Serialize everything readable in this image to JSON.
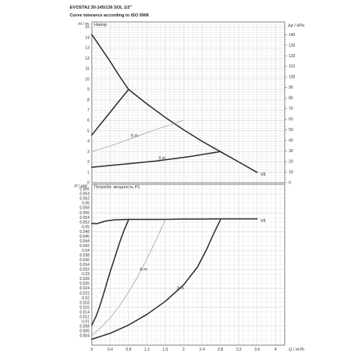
{
  "header": {
    "title": "EVOSTA2 30-145/136 SOL 1/2\"",
    "subtitle": "Curve tolerance according to ISO 9906"
  },
  "colors": {
    "curve": "#2b2b2b",
    "curve_light": "#9a9a9a",
    "grid_minor": "#e2e2e2",
    "grid_major": "#bfbfbf"
  },
  "chart_data": [
    {
      "type": "line",
      "legend_label": "Напор",
      "ylabel": "H / m",
      "ylim": [
        0,
        15.5
      ],
      "yticks": [
        0,
        1,
        2,
        3,
        4,
        5,
        6,
        7,
        8,
        9,
        10,
        11,
        12,
        13,
        14,
        15
      ],
      "y2label": "Δp / kPa",
      "y2lim": [
        0,
        152
      ],
      "y2ticks": [
        0,
        10,
        20,
        30,
        40,
        50,
        60,
        70,
        80,
        90,
        100,
        110,
        120,
        130,
        140
      ],
      "xlim": [
        0,
        4.2
      ],
      "series": [
        {
          "name": "V8",
          "style": "dark",
          "label_at": 3.65,
          "points": [
            [
              0,
              14.3
            ],
            [
              0.2,
              13.0
            ],
            [
              0.4,
              11.7
            ],
            [
              0.6,
              10.3
            ],
            [
              0.8,
              9.0
            ],
            [
              1.2,
              7.6
            ],
            [
              1.6,
              6.3
            ],
            [
              2.0,
              5.1
            ],
            [
              2.4,
              4.0
            ],
            [
              2.8,
              3.0
            ],
            [
              3.2,
              2.0
            ],
            [
              3.6,
              1.0
            ]
          ]
        },
        {
          "name": "6 m",
          "style": "light",
          "label_at": 0.85,
          "points": [
            [
              0,
              3.0
            ],
            [
              0.5,
              3.7
            ],
            [
              1.0,
              4.5
            ],
            [
              1.5,
              5.3
            ],
            [
              2.0,
              6.0
            ]
          ]
        },
        {
          "name": "3 m",
          "style": "dark",
          "label_at": 1.45,
          "points": [
            [
              0,
              1.5
            ],
            [
              0.7,
              1.8
            ],
            [
              1.4,
              2.1
            ],
            [
              2.1,
              2.5
            ],
            [
              2.8,
              3.0
            ]
          ]
        },
        {
          "name": "",
          "style": "dark",
          "points": [
            [
              0,
              4.6
            ],
            [
              0.2,
              5.7
            ],
            [
              0.4,
              6.8
            ],
            [
              0.6,
              7.9
            ],
            [
              0.8,
              9.0
            ]
          ]
        }
      ]
    },
    {
      "type": "line",
      "legend_label": "Потребл. мощность P1",
      "ylabel": "P / kW",
      "ylim": [
        0,
        0.068
      ],
      "yticks": [
        0.004,
        0.006,
        0.008,
        0.01,
        0.012,
        0.014,
        0.016,
        0.018,
        0.02,
        0.022,
        0.024,
        0.026,
        0.028,
        0.03,
        0.032,
        0.034,
        0.036,
        0.038,
        0.04,
        0.042,
        0.044,
        0.046,
        0.048,
        0.05,
        0.052,
        0.054,
        0.056,
        0.058,
        0.06,
        0.062,
        0.064,
        0.066
      ],
      "ytick_labels": [
        "0.004",
        "0.006",
        "0.008",
        "0.01",
        "0.012",
        "0.014",
        "0.016",
        "0.018",
        "0.02",
        "0.022",
        "0.024",
        "0.026",
        "0.028",
        "0.03",
        "0.032",
        "0.034",
        "0.036",
        "0.038",
        "0.04",
        "0.042",
        "0.044",
        "0.046",
        "0.048",
        "0.05",
        "0.052",
        "0.054",
        "0.056",
        "0.058",
        "0.06",
        "0.062",
        "0.064",
        "0.066"
      ],
      "xlabel": "Q / m³/h",
      "xlim": [
        0,
        4.2
      ],
      "xticks": [
        0,
        0.4,
        0.8,
        1.2,
        1.6,
        2.0,
        2.4,
        2.8,
        3.2,
        3.6,
        4.0
      ],
      "xtick_labels": [
        "0",
        "0.4",
        "0.8",
        "1.2",
        "1.6",
        "2",
        "2.4",
        "2.8",
        "3.2",
        "3.6",
        "4"
      ],
      "series": [
        {
          "name": "V8",
          "style": "dark",
          "label_at": 3.65,
          "points": [
            [
              0,
              0.0515
            ],
            [
              0.1,
              0.0513
            ],
            [
              0.3,
              0.0525
            ],
            [
              0.5,
              0.053
            ],
            [
              0.8,
              0.0532
            ],
            [
              1.2,
              0.0532
            ],
            [
              1.6,
              0.0532
            ],
            [
              2.0,
              0.0533
            ],
            [
              2.4,
              0.0533
            ],
            [
              2.8,
              0.0534
            ],
            [
              3.2,
              0.0534
            ],
            [
              3.6,
              0.0534
            ]
          ]
        },
        {
          "name": "",
          "style": "dark",
          "points": [
            [
              0,
              0.0085
            ],
            [
              0.1,
              0.0125
            ],
            [
              0.2,
              0.018
            ],
            [
              0.3,
              0.0245
            ],
            [
              0.4,
              0.031
            ],
            [
              0.5,
              0.037
            ],
            [
              0.6,
              0.043
            ],
            [
              0.7,
              0.0485
            ],
            [
              0.8,
              0.053
            ]
          ]
        },
        {
          "name": "6 m",
          "style": "light",
          "label_at": 1.05,
          "points": [
            [
              0,
              0.004
            ],
            [
              0.2,
              0.0075
            ],
            [
              0.4,
              0.0115
            ],
            [
              0.6,
              0.0165
            ],
            [
              0.8,
              0.0225
            ],
            [
              1.0,
              0.029
            ],
            [
              1.2,
              0.0365
            ],
            [
              1.4,
              0.0445
            ],
            [
              1.6,
              0.053
            ]
          ]
        },
        {
          "name": "3 m",
          "style": "dark",
          "label_at": 1.85,
          "points": [
            [
              0,
              0.0025
            ],
            [
              0.4,
              0.005
            ],
            [
              0.8,
              0.0085
            ],
            [
              1.2,
              0.013
            ],
            [
              1.6,
              0.0185
            ],
            [
              2.0,
              0.0255
            ],
            [
              2.3,
              0.033
            ],
            [
              2.5,
              0.0405
            ],
            [
              2.65,
              0.047
            ],
            [
              2.8,
              0.053
            ]
          ]
        }
      ]
    }
  ]
}
